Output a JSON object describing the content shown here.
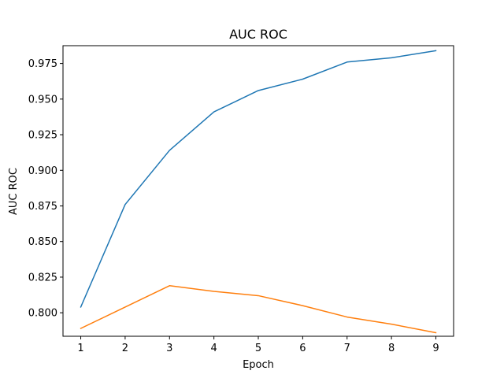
{
  "chart_data": {
    "type": "line",
    "title": "AUC ROC",
    "xlabel": "Epoch",
    "ylabel": "AUC ROC",
    "x": [
      1,
      2,
      3,
      4,
      5,
      6,
      7,
      8,
      9
    ],
    "xlim": [
      0.6,
      9.4
    ],
    "ylim": [
      0.7835,
      0.9875
    ],
    "xticks": [
      1,
      2,
      3,
      4,
      5,
      6,
      7,
      8,
      9
    ],
    "xtick_labels": [
      "1",
      "2",
      "3",
      "4",
      "5",
      "6",
      "7",
      "8",
      "9"
    ],
    "yticks": [
      0.8,
      0.825,
      0.85,
      0.875,
      0.9,
      0.925,
      0.95,
      0.975
    ],
    "ytick_labels": [
      "0.800",
      "0.825",
      "0.850",
      "0.875",
      "0.900",
      "0.925",
      "0.950",
      "0.975"
    ],
    "grid": false,
    "legend": false,
    "series": [
      {
        "color": "#1f77b4",
        "values": [
          0.804,
          0.876,
          0.914,
          0.941,
          0.956,
          0.964,
          0.976,
          0.979,
          0.984
        ]
      },
      {
        "color": "#ff7f0e",
        "values": [
          0.789,
          0.804,
          0.819,
          0.815,
          0.812,
          0.805,
          0.797,
          0.792,
          0.786
        ]
      }
    ]
  }
}
